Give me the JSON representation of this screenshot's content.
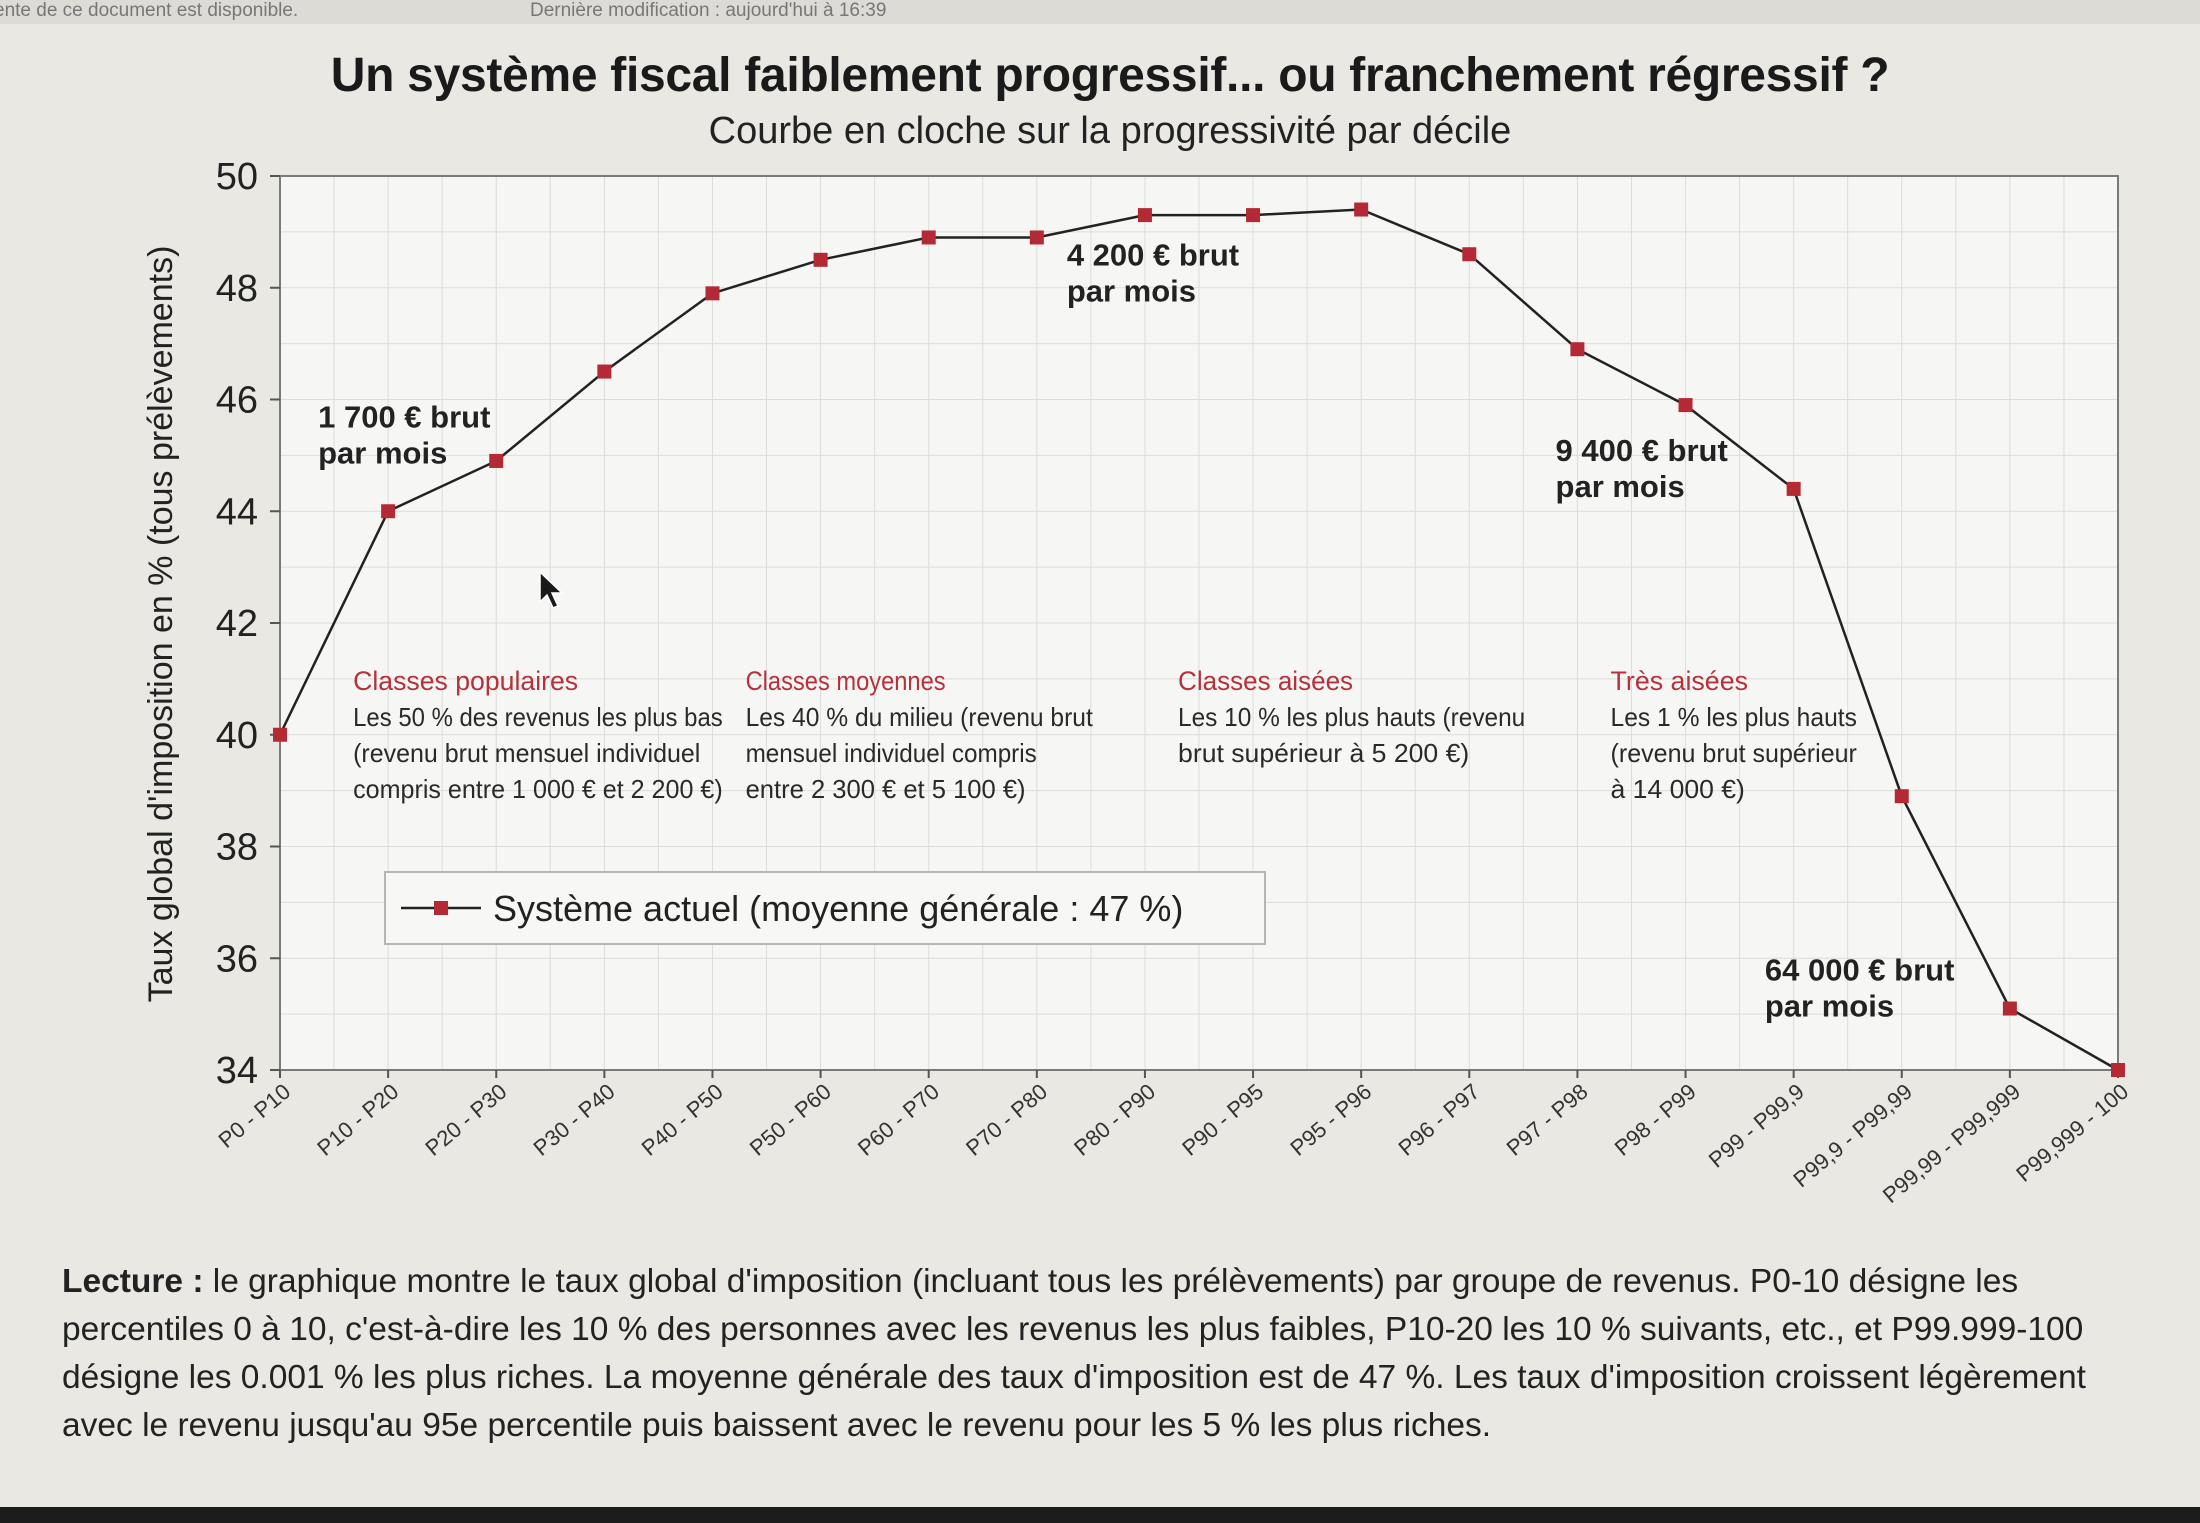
{
  "top_bar": {
    "left_text": "ente de ce document est disponible.",
    "right_text": "Dernière modification : aujourd'hui à 16:39"
  },
  "chart_data": {
    "type": "line",
    "title": "Un système fiscal faiblement progressif... ou franchement régressif ?",
    "subtitle": "Courbe en cloche sur la progressivité par décile",
    "xlabel": "",
    "ylabel": "Taux global d'imposition en % (tous prélèvements)",
    "ylim": [
      34,
      50
    ],
    "yticks": [
      34,
      36,
      38,
      40,
      42,
      44,
      46,
      48,
      50
    ],
    "grid": true,
    "legend_position": "lower-left",
    "categories": [
      "P0 - P10",
      "P10 - P20",
      "P20 - P30",
      "P30 - P40",
      "P40 - P50",
      "P50 - P60",
      "P60 - P70",
      "P70 - P80",
      "P80 - P90",
      "P90 - P95",
      "P95 - P96",
      "P96 - P97",
      "P97 - P98",
      "P98 - P99",
      "P99 - P99,9",
      "P99,9 - P99,99",
      "P99,99 - P99,999",
      "P99,999 - 100"
    ],
    "series": [
      {
        "name": "Système actuel (moyenne générale : 47 %)",
        "color": "#b32a35",
        "values": [
          40.0,
          44.0,
          44.9,
          46.5,
          47.9,
          48.5,
          48.9,
          48.9,
          49.3,
          49.3,
          49.4,
          48.6,
          46.9,
          45.9,
          44.4,
          38.9,
          35.1,
          34.0
        ]
      }
    ],
    "annotations": [
      {
        "text": [
          "1 700 € brut",
          "par mois"
        ],
        "category": "P10 - P20"
      },
      {
        "text": [
          "4 200 € brut",
          "par mois"
        ],
        "category": "P70 - P80"
      },
      {
        "text": [
          "9 400 € brut",
          "par mois"
        ],
        "category": "P98 - P99"
      },
      {
        "text": [
          "64 000 € brut",
          "par mois"
        ],
        "category": "P99,99 - P99,999"
      }
    ],
    "class_labels": [
      {
        "title": "Classes populaires",
        "lines": [
          "Les 50 % des revenus les plus bas",
          "(revenu brut mensuel individuel",
          "compris entre 1 000 € et 2 200 €)"
        ]
      },
      {
        "title": "Classes moyennes",
        "lines": [
          "Les 40 % du milieu (revenu brut",
          "mensuel individuel compris",
          "entre 2 300 € et 5 100 €)"
        ]
      },
      {
        "title": "Classes aisées",
        "lines": [
          "Les 10 % les plus hauts (revenu",
          "brut supérieur à 5 200  €)"
        ]
      },
      {
        "title": "Très aisées",
        "lines": [
          "Les 1 % les plus hauts",
          "(revenu brut supérieur",
          "à 14 000  €)"
        ]
      }
    ]
  },
  "reading": {
    "label": "Lecture :",
    "text": " le graphique montre le taux global d'imposition (incluant tous les prélèvements) par groupe de revenus. P0-10 désigne les percentiles 0 à 10, c'est-à-dire les 10 % des personnes avec les revenus les plus faibles, P10-20 les 10 % suivants, etc., et P99.999-100 désigne les 0.001 %     les plus riches. La moyenne générale des taux d'imposition est de 47 %. Les taux d'imposition croissent légèrement avec le revenu jusqu'au 95e percentile puis baissent avec le revenu     pour les 5 % les plus riches."
  }
}
